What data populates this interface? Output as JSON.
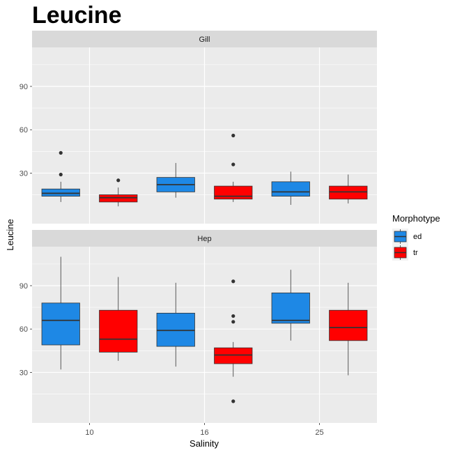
{
  "chart_data": {
    "type": "boxplot",
    "title": "Leucine",
    "xlabel": "Salinity",
    "ylabel": "Leucine",
    "categories": [
      "10",
      "16",
      "25"
    ],
    "ylim": [
      -5,
      117
    ],
    "yticks": [
      30,
      60,
      90
    ],
    "grid": true,
    "legend": {
      "title": "Morphotype",
      "placement": "right",
      "entries": [
        {
          "name": "ed",
          "color": "#1E88E5"
        },
        {
          "name": "tr",
          "color": "#FF0000"
        }
      ]
    },
    "panels": [
      {
        "name": "Gill",
        "boxes": [
          {
            "category": "10",
            "group": "ed",
            "whisker_low": 10,
            "q1": 14,
            "median": 16,
            "q3": 19,
            "whisker_high": 24,
            "outliers": [
              29,
              44
            ]
          },
          {
            "category": "10",
            "group": "tr",
            "whisker_low": 7,
            "q1": 10,
            "median": 13,
            "q3": 15,
            "whisker_high": 20,
            "outliers": [
              25
            ]
          },
          {
            "category": "16",
            "group": "ed",
            "whisker_low": 13,
            "q1": 17,
            "median": 22,
            "q3": 27,
            "whisker_high": 37,
            "outliers": []
          },
          {
            "category": "16",
            "group": "tr",
            "whisker_low": 10,
            "q1": 12,
            "median": 14,
            "q3": 21,
            "whisker_high": 24,
            "outliers": [
              36,
              56
            ]
          },
          {
            "category": "25",
            "group": "ed",
            "whisker_low": 8,
            "q1": 14,
            "median": 17,
            "q3": 24,
            "whisker_high": 31,
            "outliers": []
          },
          {
            "category": "25",
            "group": "tr",
            "whisker_low": 9,
            "q1": 12,
            "median": 17,
            "q3": 21,
            "whisker_high": 29,
            "outliers": []
          }
        ]
      },
      {
        "name": "Hep",
        "boxes": [
          {
            "category": "10",
            "group": "ed",
            "whisker_low": 32,
            "q1": 49,
            "median": 66,
            "q3": 78,
            "whisker_high": 110,
            "outliers": []
          },
          {
            "category": "10",
            "group": "tr",
            "whisker_low": 38,
            "q1": 44,
            "median": 53,
            "q3": 73,
            "whisker_high": 96,
            "outliers": []
          },
          {
            "category": "16",
            "group": "ed",
            "whisker_low": 34,
            "q1": 48,
            "median": 59,
            "q3": 71,
            "whisker_high": 92,
            "outliers": []
          },
          {
            "category": "16",
            "group": "tr",
            "whisker_low": 27,
            "q1": 36,
            "median": 42,
            "q3": 47,
            "whisker_high": 51,
            "outliers": [
              10,
              65,
              69,
              93
            ]
          },
          {
            "category": "25",
            "group": "ed",
            "whisker_low": 52,
            "q1": 64,
            "median": 66,
            "q3": 85,
            "whisker_high": 101,
            "outliers": []
          },
          {
            "category": "25",
            "group": "tr",
            "whisker_low": 28,
            "q1": 52,
            "median": 61,
            "q3": 73,
            "whisker_high": 92,
            "outliers": []
          }
        ]
      }
    ]
  }
}
